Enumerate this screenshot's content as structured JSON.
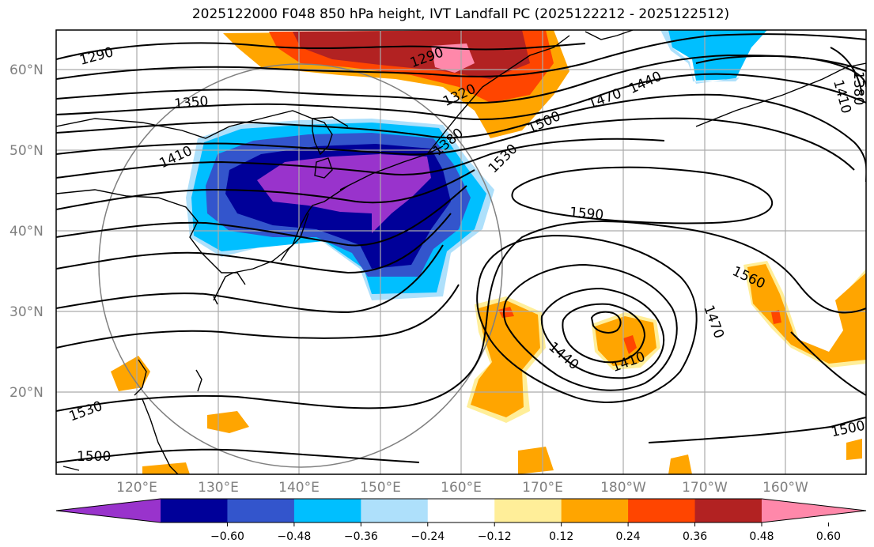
{
  "title": "2025122000 F048 850 hPa height, IVT Landfall PC (2025122212 - 2025122512)",
  "map": {
    "lat_labels": [
      "60°N",
      "50°N",
      "40°N",
      "30°N",
      "20°N"
    ],
    "lon_labels": [
      "120°E",
      "130°E",
      "140°E",
      "150°E",
      "160°E",
      "170°E",
      "180°W",
      "170°W",
      "160°W"
    ]
  },
  "contour_labels": [
    {
      "id": "c1290a",
      "text": "1290"
    },
    {
      "id": "c1290b",
      "text": "1290"
    },
    {
      "id": "c1350",
      "text": "1350"
    },
    {
      "id": "c1320",
      "text": "1320"
    },
    {
      "id": "c1410a",
      "text": "1410"
    },
    {
      "id": "c1380",
      "text": "1380"
    },
    {
      "id": "c1440a",
      "text": "1440"
    },
    {
      "id": "c1470a",
      "text": "1470"
    },
    {
      "id": "c1500a",
      "text": "1500"
    },
    {
      "id": "c1530a",
      "text": "1530"
    },
    {
      "id": "c1590",
      "text": "1590"
    },
    {
      "id": "c1560",
      "text": "1560"
    },
    {
      "id": "c1470b",
      "text": "1470"
    },
    {
      "id": "c1440b",
      "text": "1440"
    },
    {
      "id": "c1410b",
      "text": "1410"
    },
    {
      "id": "c1530b",
      "text": "1530"
    },
    {
      "id": "c1500b",
      "text": "1500"
    },
    {
      "id": "c1500c",
      "text": "1500"
    },
    {
      "id": "c1380b",
      "text": "1380"
    },
    {
      "id": "c1410c",
      "text": "1410"
    }
  ],
  "colorbar": {
    "colors": [
      "#9933cc",
      "#000099",
      "#3355cc",
      "#00bfff",
      "#aee0fb",
      "#ffffff",
      "#ffee99",
      "#ffa500",
      "#ff4500",
      "#b22222",
      "#ff88aa"
    ],
    "ticks": [
      "−0.60",
      "−0.48",
      "−0.36",
      "−0.24",
      "−0.12",
      "0.12",
      "0.24",
      "0.36",
      "0.48",
      "0.60"
    ]
  }
}
